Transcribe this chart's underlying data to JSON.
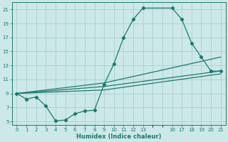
{
  "xlabel": "Humidex (Indice chaleur)",
  "ylabel": "",
  "bg_color": "#cce8e8",
  "grid_color": "#aacfcf",
  "line_color": "#1a7a6e",
  "xlim": [
    -0.5,
    21.5
  ],
  "ylim": [
    4.5,
    22.0
  ],
  "xticks": [
    0,
    1,
    2,
    3,
    4,
    5,
    6,
    7,
    8,
    9,
    10,
    11,
    12,
    13,
    16,
    17,
    18,
    19,
    20,
    21
  ],
  "yticks": [
    5,
    7,
    9,
    11,
    13,
    15,
    17,
    19,
    21
  ],
  "series1_x": [
    0,
    1,
    2,
    3,
    4,
    5,
    6,
    7,
    8,
    9,
    10,
    11,
    12,
    13,
    16,
    17,
    18,
    19,
    20,
    21
  ],
  "series1_y": [
    9.0,
    8.2,
    8.5,
    7.2,
    5.1,
    5.2,
    6.1,
    6.5,
    6.6,
    10.3,
    13.2,
    17.0,
    19.6,
    21.2,
    21.2,
    19.6,
    16.2,
    14.2,
    12.2,
    12.2
  ],
  "series2_x": [
    0,
    9,
    21
  ],
  "series2_y": [
    9.0,
    10.5,
    14.2
  ],
  "series3_x": [
    0,
    9,
    21
  ],
  "series3_y": [
    9.0,
    10.0,
    12.2
  ],
  "series4_x": [
    0,
    9,
    21
  ],
  "series4_y": [
    9.0,
    9.5,
    11.8
  ],
  "marker_size": 2.2,
  "line_width": 0.9
}
